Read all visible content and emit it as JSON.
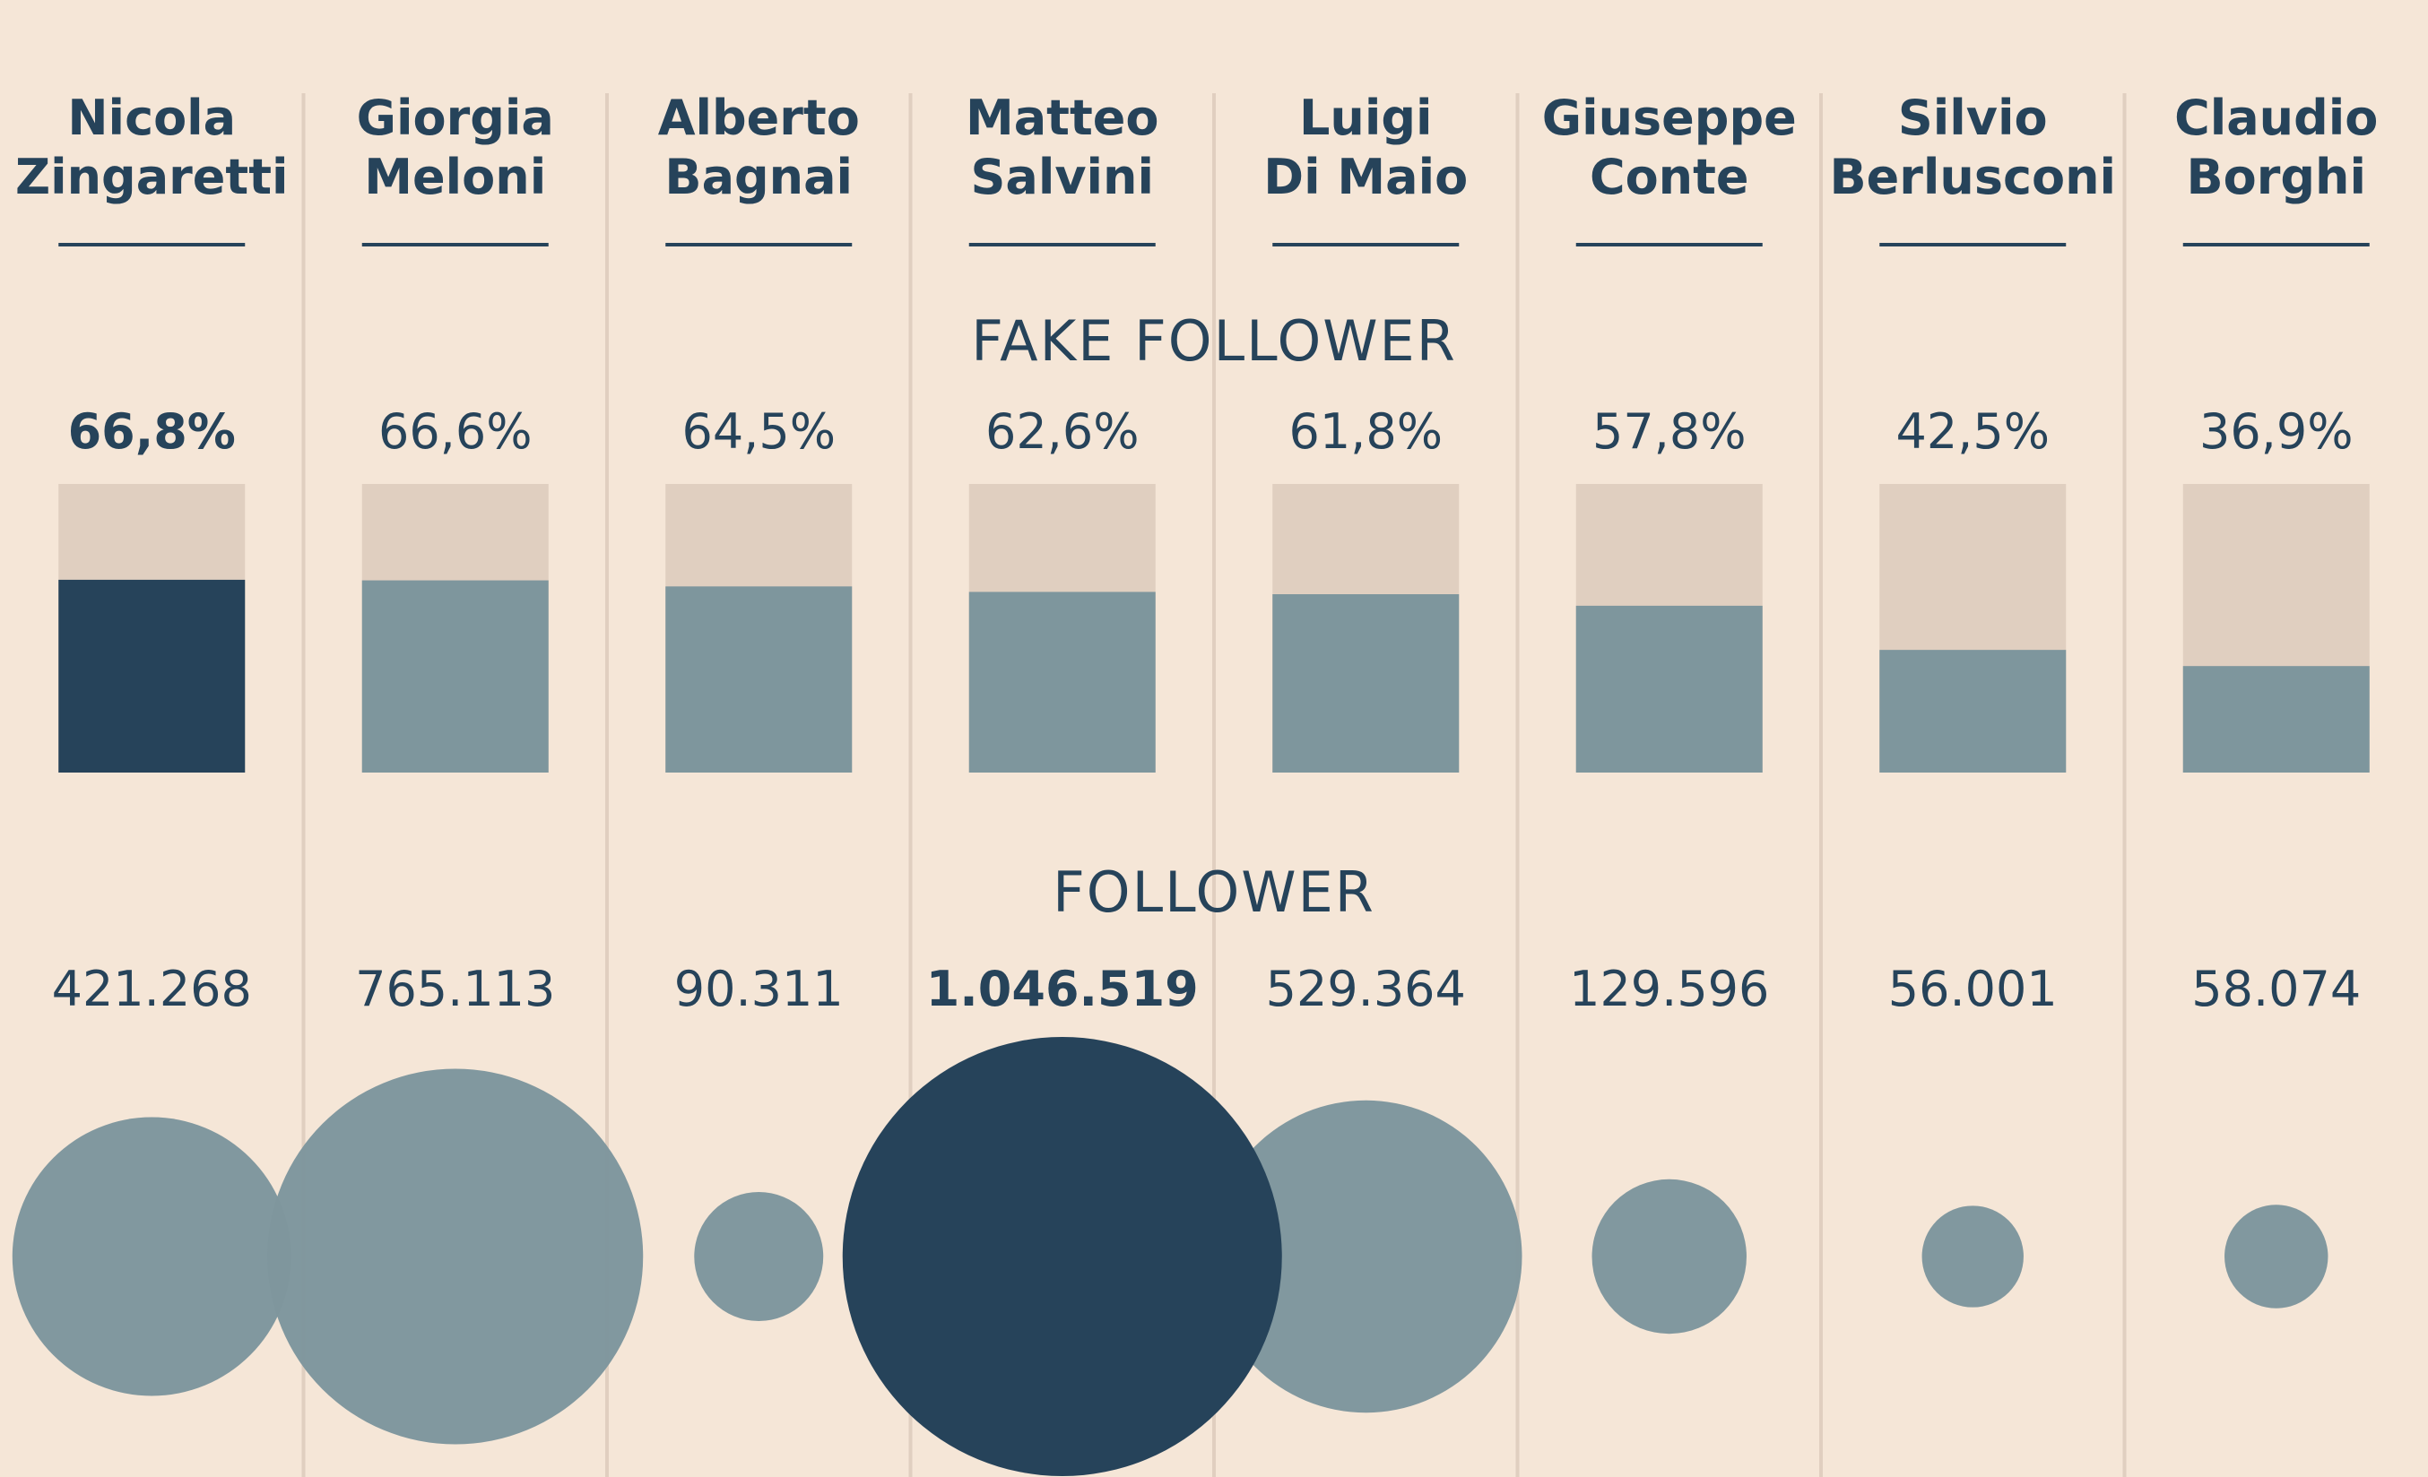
{
  "colors": {
    "background": "#f5e6d7",
    "highlight": "#26435a",
    "regular": "#7e969d",
    "track": "#e0cfc0",
    "divider": "#e0cfc0",
    "text": "#26435a"
  },
  "sections": {
    "fake_title": "FAKE FOLLOWER",
    "followers_title": "FOLLOWER"
  },
  "chart_data": [
    {
      "type": "bar",
      "title": "FAKE FOLLOWER",
      "categories": [
        "Nicola Zingaretti",
        "Giorgia Meloni",
        "Alberto Bagnai",
        "Matteo Salvini",
        "Luigi Di Maio",
        "Giuseppe Conte",
        "Silvio Berlusconi",
        "Claudio Borghi"
      ],
      "category_lines": [
        [
          "Nicola",
          "Zingaretti"
        ],
        [
          "Giorgia",
          "Meloni"
        ],
        [
          "Alberto",
          "Bagnai"
        ],
        [
          "Matteo",
          "Salvini"
        ],
        [
          "Luigi",
          "Di Maio"
        ],
        [
          "Giuseppe",
          "Conte"
        ],
        [
          "Silvio",
          "Berlusconi"
        ],
        [
          "Claudio",
          "Borghi"
        ]
      ],
      "values": [
        66.8,
        66.6,
        64.5,
        62.6,
        61.8,
        57.8,
        42.5,
        36.9
      ],
      "labels": [
        "66,8%",
        "66,6%",
        "64,5%",
        "62,6%",
        "61,8%",
        "57,8%",
        "42,5%",
        "36,9%"
      ],
      "ylim": [
        0,
        100
      ],
      "highlighted_index": 0
    },
    {
      "type": "bubble",
      "title": "FOLLOWER",
      "categories": [
        "Nicola Zingaretti",
        "Giorgia Meloni",
        "Alberto Bagnai",
        "Matteo Salvini",
        "Luigi Di Maio",
        "Giuseppe Conte",
        "Silvio Berlusconi",
        "Claudio Borghi"
      ],
      "values": [
        421268,
        765113,
        90311,
        1046519,
        529364,
        129596,
        56001,
        58074
      ],
      "labels": [
        "421.268",
        "765.113",
        "90.311",
        "1.046.519",
        "529.364",
        "129.596",
        "56.001",
        "58.074"
      ],
      "size_encoding": "area",
      "highlighted_index": 3
    }
  ]
}
